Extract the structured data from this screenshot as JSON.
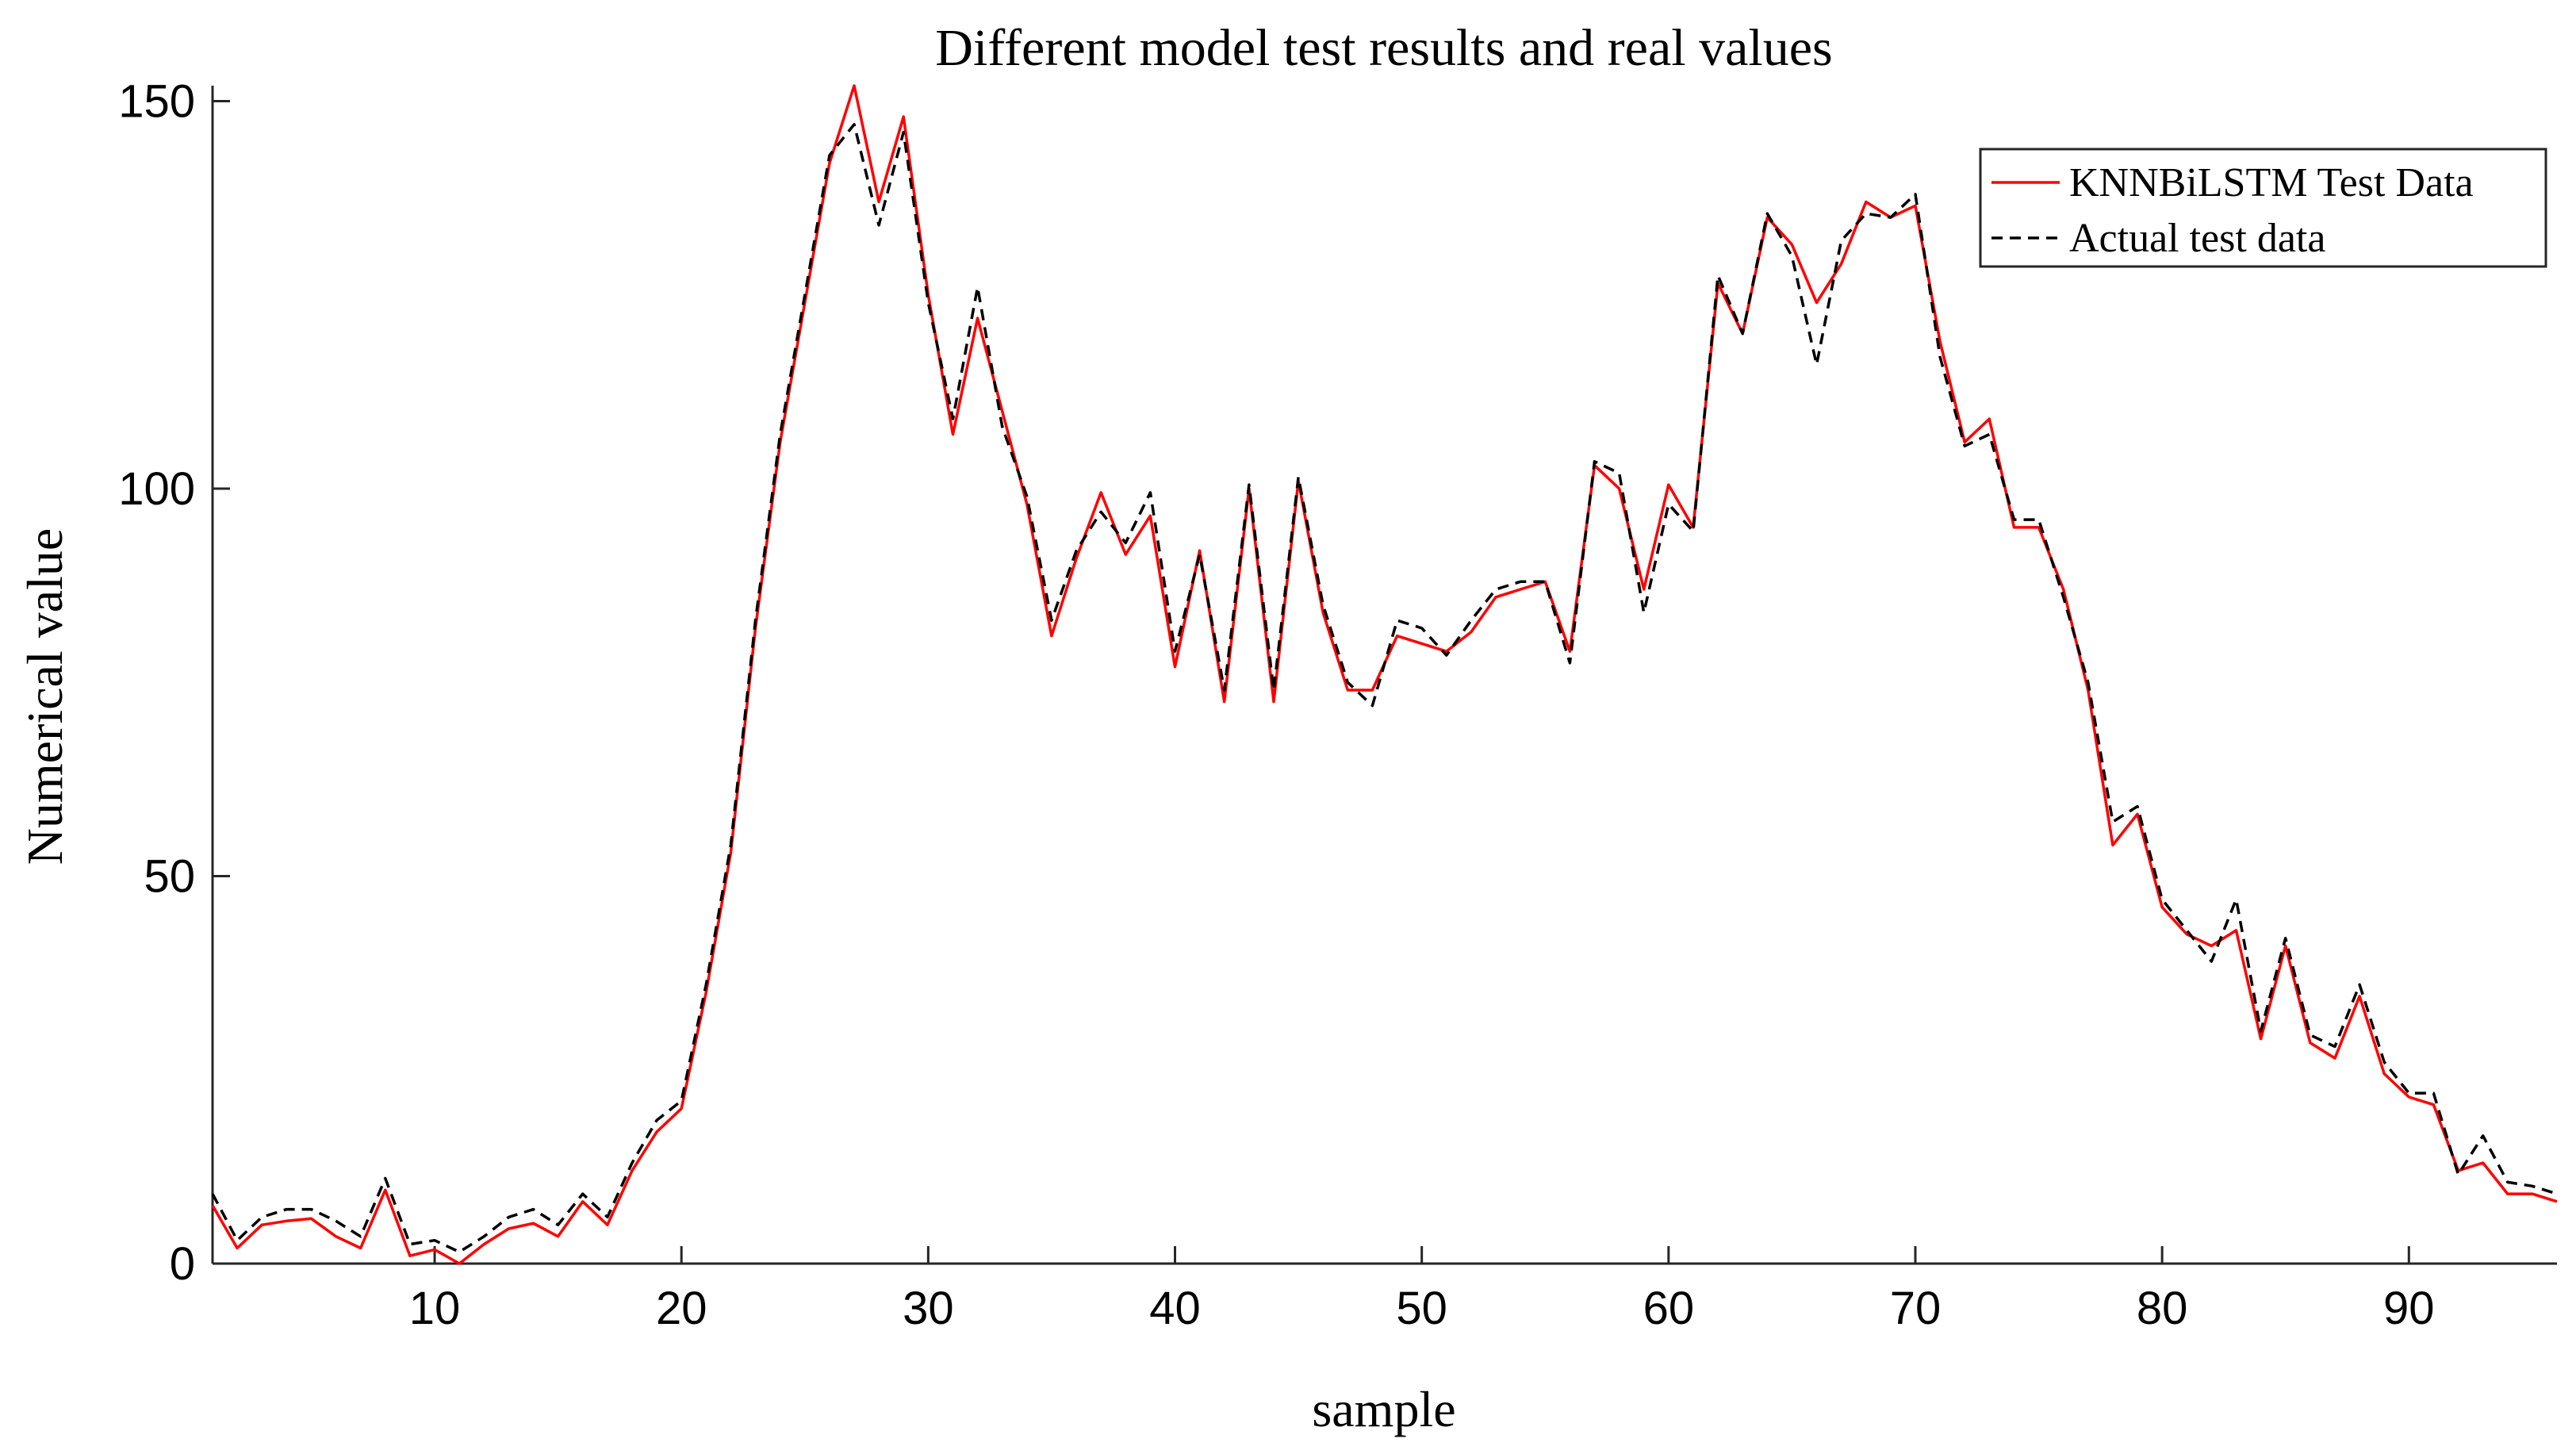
{
  "chart_data": {
    "type": "line",
    "title": "Different model test results and real values",
    "xlabel": "sample",
    "ylabel": "Numerical value",
    "xlim": [
      1,
      96
    ],
    "ylim": [
      0,
      152
    ],
    "xticks": [
      10,
      20,
      30,
      40,
      50,
      60,
      70,
      80,
      90
    ],
    "yticks": [
      0,
      50,
      100,
      150
    ],
    "grid": false,
    "legend_position": "top-right",
    "x": [
      1,
      2,
      3,
      4,
      5,
      6,
      7,
      8,
      9,
      10,
      11,
      12,
      13,
      14,
      15,
      16,
      17,
      18,
      19,
      20,
      21,
      22,
      23,
      24,
      25,
      26,
      27,
      28,
      29,
      30,
      31,
      32,
      33,
      34,
      35,
      36,
      37,
      38,
      39,
      40,
      41,
      42,
      43,
      44,
      45,
      46,
      47,
      48,
      49,
      50,
      51,
      52,
      53,
      54,
      55,
      56,
      57,
      58,
      59,
      60,
      61,
      62,
      63,
      64,
      65,
      66,
      67,
      68,
      69,
      70,
      71,
      72,
      73,
      74,
      75,
      76,
      77,
      78,
      79,
      80,
      81,
      82,
      83,
      84,
      85,
      86,
      87,
      88,
      89,
      90,
      91,
      92,
      93,
      94,
      95,
      96
    ],
    "series": [
      {
        "name": "KNNBiLSTM Test Data",
        "color": "#ff0000",
        "dash": "solid",
        "values": [
          7.5,
          2,
          5,
          5.5,
          5.8,
          3.5,
          2,
          9.5,
          1,
          1.8,
          0,
          2.5,
          4.5,
          5.2,
          3.5,
          8,
          5,
          12,
          17,
          20,
          35,
          53,
          82,
          106,
          124,
          142,
          152,
          137,
          148,
          125,
          107,
          122,
          110,
          98,
          81,
          91,
          99.5,
          91.5,
          96.5,
          77,
          92,
          72.5,
          100,
          72.5,
          101,
          84,
          74,
          74,
          81,
          80,
          79,
          81.5,
          86,
          87,
          88,
          79,
          103,
          100,
          87,
          100.5,
          95,
          126.5,
          120,
          135,
          131.5,
          124,
          129,
          137,
          135,
          136.5,
          119,
          106,
          109,
          95,
          95,
          87,
          74,
          54,
          58,
          46,
          42.5,
          41,
          43,
          29,
          41,
          28.5,
          26.5,
          34.5,
          24.5,
          21.5,
          20.5,
          12,
          13,
          9,
          9,
          8
        ]
      },
      {
        "name": "Actual test data",
        "color": "#000000",
        "dash": "dashed",
        "values": [
          9,
          3,
          6,
          7,
          7,
          5.5,
          3.5,
          11,
          2.5,
          3,
          1.5,
          3.5,
          6,
          7,
          5,
          9,
          6,
          13,
          18.5,
          21,
          36,
          54,
          83,
          107,
          125,
          143,
          147,
          134,
          146,
          124,
          109,
          126,
          108,
          99,
          83,
          92,
          97,
          93,
          99.5,
          79,
          91.5,
          74,
          100.5,
          74,
          101.5,
          85,
          75,
          72,
          83,
          82,
          78.5,
          83,
          87,
          88,
          88,
          77.5,
          103.5,
          102,
          84,
          98,
          94.5,
          127.5,
          120,
          135.5,
          130,
          116,
          132,
          135.5,
          135,
          138,
          117,
          105.5,
          107,
          96,
          96,
          86,
          75,
          57,
          59,
          47,
          43,
          39,
          47,
          30,
          42,
          29.5,
          28,
          36,
          26,
          22,
          22,
          11.5,
          16.5,
          10.5,
          10,
          9
        ]
      }
    ]
  }
}
